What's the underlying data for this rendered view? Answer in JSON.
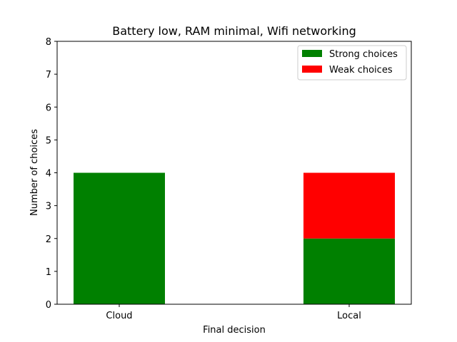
{
  "chart_data": {
    "type": "bar",
    "stacked": true,
    "title": "Battery low, RAM minimal, Wifi networking",
    "xlabel": "Final decision",
    "ylabel": "Number of choices",
    "categories": [
      "Cloud",
      "Local"
    ],
    "ylim": [
      0,
      8
    ],
    "yticks": [
      "0",
      "1",
      "2",
      "3",
      "4",
      "5",
      "6",
      "7",
      "8"
    ],
    "series": [
      {
        "name": "Strong choices",
        "color": "#008000",
        "values": [
          4,
          2
        ]
      },
      {
        "name": "Weak choices",
        "color": "#ff0000",
        "values": [
          0,
          2
        ]
      }
    ],
    "grid": false,
    "legend_position": "top-right"
  }
}
